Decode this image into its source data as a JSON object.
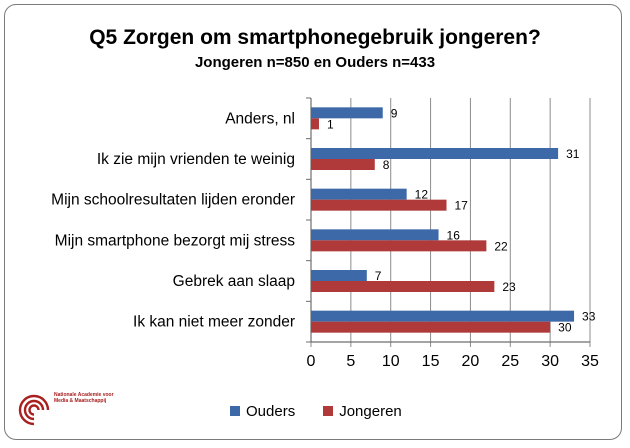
{
  "colors": {
    "ouders": "#3d69a8",
    "jongeren": "#b03a3a",
    "grid": "#8c8c8c",
    "frame": "#7a7a7a",
    "logo": "#a82020"
  },
  "logo": {
    "icon": "concentric-arcs-logo",
    "text": "Nationale Academie voor Media & Maatschappij"
  },
  "chart_data": {
    "type": "bar",
    "orientation": "horizontal",
    "title": "Q5 Zorgen om smartphonegebruik jongeren?",
    "subtitle": "Jongeren n=850 en Ouders n=433",
    "categories": [
      "Anders, nl",
      "Ik zie mijn vrienden te weinig",
      "Mijn schoolresultaten lijden eronder",
      "Mijn smartphone bezorgt mij stress",
      "Gebrek aan slaap",
      "Ik kan niet meer zonder"
    ],
    "series": [
      {
        "name": "Ouders",
        "values": [
          9,
          31,
          12,
          16,
          7,
          33
        ]
      },
      {
        "name": "Jongeren",
        "values": [
          1,
          8,
          17,
          22,
          23,
          30
        ]
      }
    ],
    "xlim": [
      0,
      35
    ],
    "xticks": [
      0,
      5,
      10,
      15,
      20,
      25,
      30,
      35
    ],
    "grid": true,
    "legend": "bottom"
  }
}
